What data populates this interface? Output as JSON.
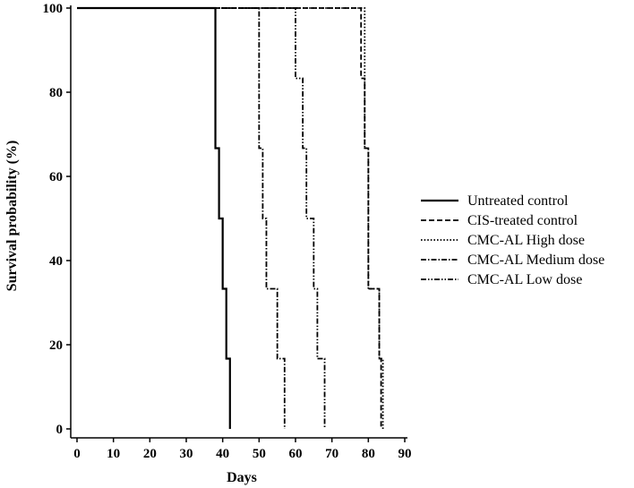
{
  "chart_data": {
    "type": "line",
    "subtype": "kaplan-meier step",
    "title": "",
    "xlabel": "Days",
    "ylabel": "Survival probability (%)",
    "xlim": [
      0,
      90
    ],
    "ylim": [
      0,
      100
    ],
    "x_ticks": [
      0,
      10,
      20,
      30,
      40,
      50,
      60,
      70,
      80,
      90
    ],
    "y_ticks": [
      0,
      20,
      40,
      60,
      80,
      100
    ],
    "grid": false,
    "legend_position": "right",
    "series": [
      {
        "name": "Untreated control",
        "line_style": "solid",
        "color": "#000000",
        "points": [
          [
            0,
            100
          ],
          [
            38,
            100
          ],
          [
            38,
            66.7
          ],
          [
            39,
            66.7
          ],
          [
            39,
            50
          ],
          [
            40,
            50
          ],
          [
            40,
            33.3
          ],
          [
            41,
            33.3
          ],
          [
            41,
            16.7
          ],
          [
            42,
            16.7
          ],
          [
            42,
            0
          ]
        ]
      },
      {
        "name": "CIS-treated control",
        "line_style": "dashed",
        "color": "#000000",
        "points": [
          [
            0,
            100
          ],
          [
            78,
            100
          ],
          [
            78,
            83.3
          ],
          [
            79,
            83.3
          ],
          [
            79,
            66.7
          ],
          [
            80,
            66.7
          ],
          [
            80,
            33.3
          ],
          [
            83,
            33.3
          ],
          [
            83,
            16.7
          ],
          [
            83.5,
            16.7
          ],
          [
            83.5,
            0
          ]
        ]
      },
      {
        "name": "CMC-AL High dose",
        "line_style": "dotted",
        "color": "#000000",
        "points": [
          [
            0,
            100
          ],
          [
            79,
            100
          ],
          [
            79,
            66.7
          ],
          [
            80,
            66.7
          ],
          [
            80,
            33.3
          ],
          [
            83,
            33.3
          ],
          [
            83,
            16.7
          ],
          [
            84,
            16.7
          ],
          [
            84,
            0
          ]
        ]
      },
      {
        "name": "CMC-AL Medium dose",
        "line_style": "dash-dot",
        "color": "#000000",
        "points": [
          [
            0,
            100
          ],
          [
            50,
            100
          ],
          [
            50,
            66.7
          ],
          [
            51,
            66.7
          ],
          [
            51,
            50
          ],
          [
            52,
            50
          ],
          [
            52,
            33.3
          ],
          [
            55,
            33.3
          ],
          [
            55,
            16.7
          ],
          [
            57,
            16.7
          ],
          [
            57,
            0
          ]
        ]
      },
      {
        "name": "CMC-AL Low dose",
        "line_style": "dash-dot-dot",
        "color": "#000000",
        "points": [
          [
            0,
            100
          ],
          [
            60,
            100
          ],
          [
            60,
            83.3
          ],
          [
            62,
            83.3
          ],
          [
            62,
            66.7
          ],
          [
            63,
            66.7
          ],
          [
            63,
            50
          ],
          [
            65,
            50
          ],
          [
            65,
            33.3
          ],
          [
            66,
            33.3
          ],
          [
            66,
            16.7
          ],
          [
            68,
            16.7
          ],
          [
            68,
            0
          ]
        ]
      }
    ]
  }
}
